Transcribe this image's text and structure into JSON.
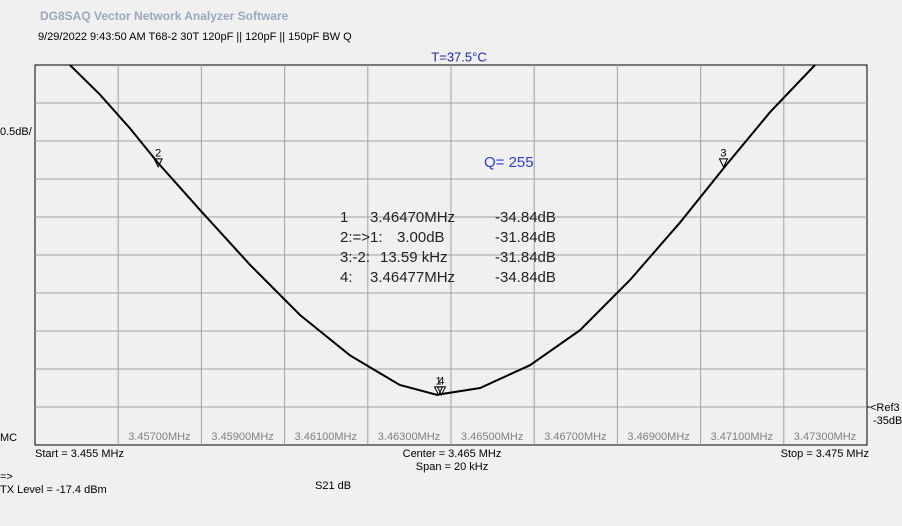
{
  "header": {
    "title": "DG8SAQ Vector Network Analyzer Software",
    "info": "9/29/2022   9:43:50 AM    T68-2 30T 120pF || 120pF || 150pF BW Q",
    "temperature": "T=37.5°C"
  },
  "chart_data": {
    "type": "line",
    "color": "#000000",
    "x": [
      3.45584,
      3.45656,
      3.45728,
      3.45796,
      3.45897,
      3.46017,
      3.46137,
      3.46257,
      3.46377,
      3.46466,
      3.4657,
      3.4669,
      3.4681,
      3.4693,
      3.47051,
      3.47161,
      3.47267,
      3.47375
    ],
    "values": [
      -30.5,
      -30.89,
      -31.33,
      -31.79,
      -32.41,
      -33.13,
      -33.79,
      -34.32,
      -34.71,
      -34.84,
      -34.75,
      -34.45,
      -33.99,
      -33.33,
      -32.57,
      -31.82,
      -31.12,
      -30.5
    ],
    "xlim": [
      3.455,
      3.475
    ],
    "ylim": [
      -35.5,
      -30.5
    ],
    "xticks": [
      {
        "value": 3.457,
        "label": "3.45700MHz"
      },
      {
        "value": 3.459,
        "label": "3.45900MHz"
      },
      {
        "value": 3.461,
        "label": "3.46100MHz"
      },
      {
        "value": 3.463,
        "label": "3.46300MHz"
      },
      {
        "value": 3.465,
        "label": "3.46500MHz"
      },
      {
        "value": 3.467,
        "label": "3.46700MHz"
      },
      {
        "value": 3.469,
        "label": "3.46900MHz"
      },
      {
        "value": 3.471,
        "label": "3.47100MHz"
      },
      {
        "value": 3.473,
        "label": "3.47300MHz"
      }
    ],
    "scale": {
      "value": 0.5,
      "label": "0.5dB/"
    },
    "ref": {
      "value": -35,
      "name": "<Ref3",
      "label": "-35dB"
    },
    "markers": [
      {
        "label": "1",
        "x": 3.4647,
        "y": -34.84
      },
      {
        "label": "2",
        "x": 3.45796,
        "y": -31.84
      },
      {
        "label": "3",
        "x": 3.47155,
        "y": -31.84
      },
      {
        "label": "4",
        "x": 3.46477,
        "y": -34.84
      }
    ],
    "q_label": "Q= 255",
    "readouts": [
      [
        "1",
        "3.46470MHz",
        "-34.84dB"
      ],
      [
        "2:=>1:",
        "3.00dB",
        "-31.84dB"
      ],
      [
        "3:-2:",
        "13.59 kHz",
        "-31.84dB"
      ],
      [
        "4:",
        "3.46477MHz",
        "-34.84dB"
      ]
    ],
    "start_label": "Start = 3.455 MHz",
    "center_label": "Center = 3.465 MHz",
    "span_label": "Span = 20 kHz",
    "stop_label": "Stop = 3.475 MHz",
    "mode": "MC",
    "arrow": "=>",
    "tx_level": "TX Level = -17.4 dBm",
    "trace_label": "S21  dB"
  }
}
